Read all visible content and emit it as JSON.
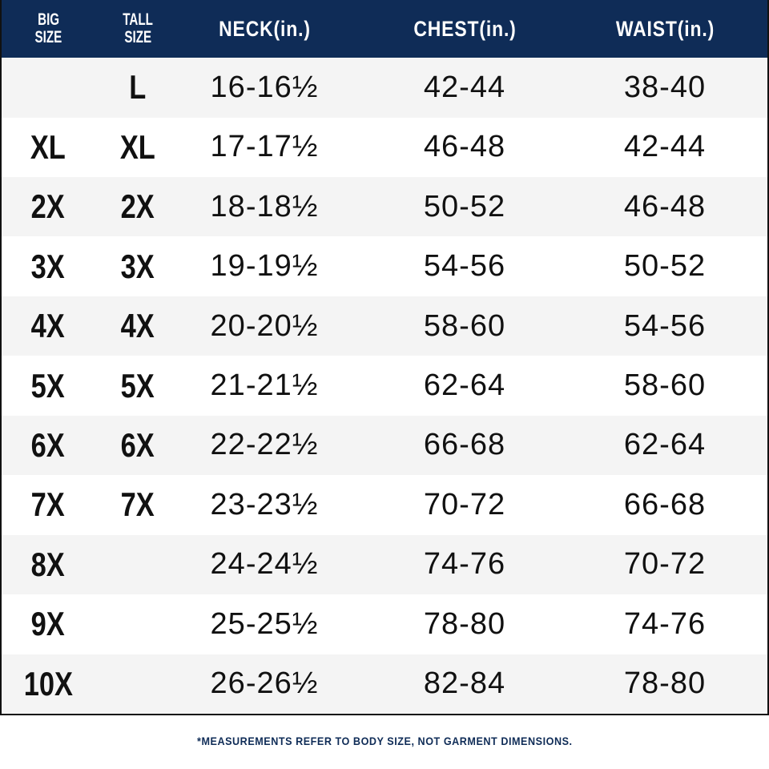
{
  "colors": {
    "header_bg": "#0f2c57",
    "alt_row": "#f4f4f4",
    "text": "#111111"
  },
  "header": {
    "big_size": [
      "BIG",
      "SIZE"
    ],
    "tall_size": [
      "TALL",
      "SIZE"
    ],
    "neck": "NECK(in.)",
    "chest": "CHEST(in.)",
    "waist": "WAIST(in.)"
  },
  "rows": [
    {
      "big": "",
      "tall": "L",
      "neck": "16-16½",
      "chest": "42-44",
      "waist": "38-40"
    },
    {
      "big": "XL",
      "tall": "XL",
      "neck": "17-17½",
      "chest": "46-48",
      "waist": "42-44"
    },
    {
      "big": "2X",
      "tall": "2X",
      "neck": "18-18½",
      "chest": "50-52",
      "waist": "46-48"
    },
    {
      "big": "3X",
      "tall": "3X",
      "neck": "19-19½",
      "chest": "54-56",
      "waist": "50-52"
    },
    {
      "big": "4X",
      "tall": "4X",
      "neck": "20-20½",
      "chest": "58-60",
      "waist": "54-56"
    },
    {
      "big": "5X",
      "tall": "5X",
      "neck": "21-21½",
      "chest": "62-64",
      "waist": "58-60"
    },
    {
      "big": "6X",
      "tall": "6X",
      "neck": "22-22½",
      "chest": "66-68",
      "waist": "62-64"
    },
    {
      "big": "7X",
      "tall": "7X",
      "neck": "23-23½",
      "chest": "70-72",
      "waist": "66-68"
    },
    {
      "big": "8X",
      "tall": "",
      "neck": "24-24½",
      "chest": "74-76",
      "waist": "70-72"
    },
    {
      "big": "9X",
      "tall": "",
      "neck": "25-25½",
      "chest": "78-80",
      "waist": "74-76"
    },
    {
      "big": "10X",
      "tall": "",
      "neck": "26-26½",
      "chest": "82-84",
      "waist": "78-80"
    }
  ],
  "footnote": "*MEASUREMENTS REFER TO BODY SIZE, NOT GARMENT DIMENSIONS."
}
